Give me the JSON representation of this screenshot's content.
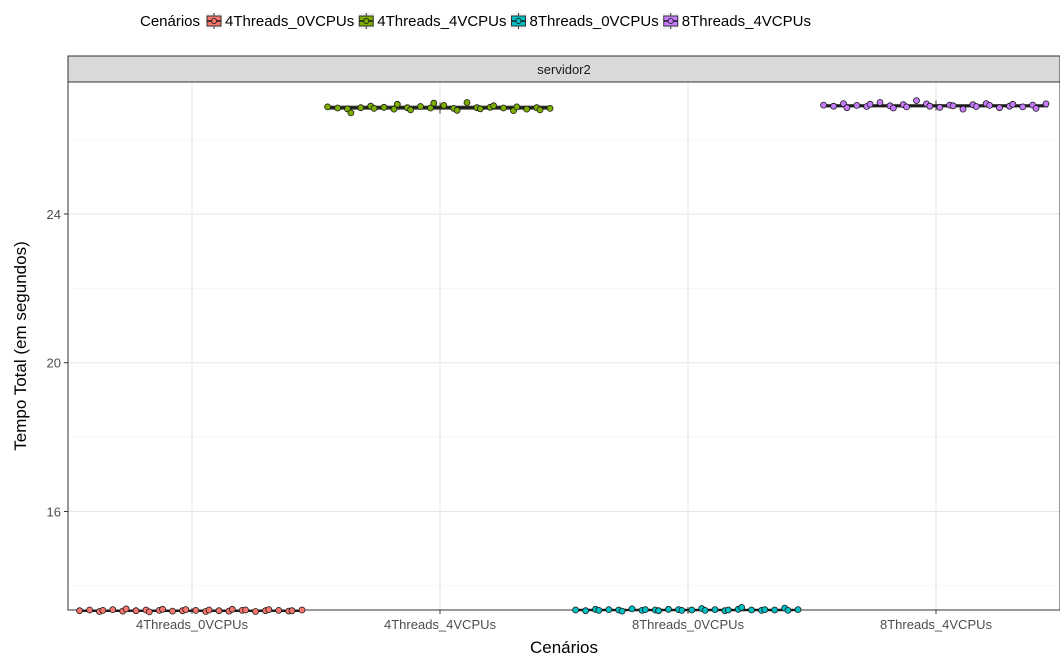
{
  "chart_data": {
    "type": "boxplot",
    "legend": {
      "title": "Cenários",
      "position": "top",
      "entries": [
        "4Threads_0VCPUs",
        "4Threads_4VCPUs",
        "8Threads_0VCPUs",
        "8Threads_4VCPUs"
      ]
    },
    "facet_label": "servidor2",
    "xlabel": "Cenários",
    "ylabel": "Tempo Total (em segundos)",
    "categories": [
      "4Threads_0VCPUs",
      "4Threads_4VCPUs",
      "8Threads_0VCPUs",
      "8Threads_4VCPUs"
    ],
    "ylim": [
      13.35,
      27.55
    ],
    "yticks": [
      16,
      20,
      24
    ],
    "grid": true,
    "colors": [
      "#f8766d",
      "#7cae00",
      "#00bfc4",
      "#c77cff"
    ],
    "series": [
      {
        "name": "4Threads_0VCPUs",
        "box": {
          "min": 13.27,
          "q1": 13.32,
          "median": 13.33,
          "q3": 13.35,
          "max": 13.4
        },
        "points": [
          13.33,
          13.35,
          13.31,
          13.34,
          13.36,
          13.32,
          13.38,
          13.33,
          13.35,
          13.3,
          13.34,
          13.37,
          13.32,
          13.33,
          13.36,
          13.34,
          13.31,
          13.35,
          13.33,
          13.32,
          13.37,
          13.34,
          13.35,
          13.31,
          13.33,
          13.36,
          13.34,
          13.32,
          13.33,
          13.35
        ]
      },
      {
        "name": "4Threads_4VCPUs",
        "box": {
          "min": 26.7,
          "q1": 26.82,
          "median": 26.86,
          "q3": 26.9,
          "max": 27.0
        },
        "points": [
          26.88,
          26.85,
          26.83,
          26.72,
          26.86,
          26.9,
          26.84,
          26.87,
          26.82,
          26.95,
          26.86,
          26.8,
          26.89,
          26.85,
          26.98,
          26.92,
          26.84,
          26.79,
          27.0,
          26.86,
          26.83,
          26.87,
          26.91,
          26.85,
          26.78,
          26.88,
          26.82,
          26.86,
          26.8,
          26.84
        ]
      },
      {
        "name": "8Threads_0VCPUs",
        "box": {
          "min": 13.3,
          "q1": 13.34,
          "median": 13.35,
          "q3": 13.37,
          "max": 13.43
        },
        "points": [
          13.35,
          13.33,
          13.37,
          13.34,
          13.36,
          13.35,
          13.32,
          13.38,
          13.34,
          13.36,
          13.35,
          13.33,
          13.37,
          13.36,
          13.34,
          13.35,
          13.39,
          13.34,
          13.36,
          13.33,
          13.35,
          13.37,
          13.42,
          13.35,
          13.34,
          13.36,
          13.35,
          13.4,
          13.34,
          13.36
        ]
      },
      {
        "name": "8Threads_4VCPUs",
        "box": {
          "min": 26.78,
          "q1": 26.88,
          "median": 26.91,
          "q3": 26.94,
          "max": 27.05
        },
        "points": [
          26.93,
          26.9,
          26.97,
          26.86,
          26.92,
          26.89,
          26.95,
          27.0,
          26.91,
          26.85,
          26.94,
          26.88,
          27.05,
          26.96,
          26.9,
          26.87,
          26.93,
          26.91,
          26.82,
          26.94,
          26.89,
          26.97,
          26.92,
          26.86,
          26.9,
          26.95,
          26.88,
          26.93,
          26.84,
          26.96
        ]
      }
    ]
  }
}
